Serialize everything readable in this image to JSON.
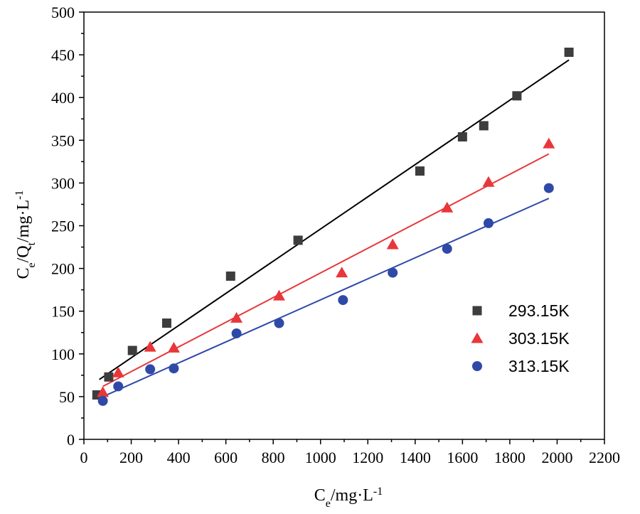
{
  "chart_data": {
    "type": "scatter",
    "xlim": [
      0,
      2200
    ],
    "ylim": [
      0,
      500
    ],
    "xticks": [
      0,
      200,
      400,
      600,
      800,
      1000,
      1200,
      1400,
      1600,
      1800,
      2000,
      2200
    ],
    "yticks": [
      0,
      50,
      100,
      150,
      200,
      250,
      300,
      350,
      400,
      450,
      500
    ],
    "xtick_labels": [
      "0",
      "200",
      "400",
      "600",
      "800",
      "1000",
      "1200",
      "1400",
      "1600",
      "1800",
      "2000",
      "2200"
    ],
    "ytick_labels": [
      "0",
      "50",
      "100",
      "150",
      "200",
      "250",
      "300",
      "350",
      "400",
      "450",
      "500"
    ],
    "xlabel": {
      "main": "C",
      "sub": "e",
      "rest": "/mg·L",
      "sup": "-1"
    },
    "ylabel": {
      "main": "C",
      "sub1": "e",
      "mid": "/Q",
      "sub2": "t",
      "rest": "/mg·L",
      "sup": "-1"
    },
    "legend_position": "middle-right",
    "series": [
      {
        "name": "293.15K",
        "color": "#3d3d3d",
        "marker": "square",
        "fit_color": "#000000",
        "fit": {
          "x": [
            65,
            2050
          ],
          "y": [
            70,
            444
          ]
        },
        "x": [
          55,
          105,
          205,
          350,
          620,
          905,
          1420,
          1600,
          1690,
          1830,
          2050
        ],
        "y": [
          52,
          73,
          104,
          136,
          191,
          233,
          314,
          354,
          367,
          402,
          453
        ]
      },
      {
        "name": "303.15K",
        "color": "#e8373a",
        "marker": "triangle",
        "fit_color": "#e8373a",
        "fit": {
          "x": [
            80,
            1965
          ],
          "y": [
            62,
            334
          ]
        },
        "x": [
          80,
          145,
          280,
          380,
          645,
          825,
          1090,
          1305,
          1535,
          1710,
          1965
        ],
        "y": [
          55,
          78,
          108,
          107,
          142,
          168,
          195,
          228,
          271,
          301,
          346
        ]
      },
      {
        "name": "313.15K",
        "color": "#2f49a8",
        "marker": "circle",
        "fit_color": "#2f49a8",
        "fit": {
          "x": [
            80,
            1965
          ],
          "y": [
            50,
            282
          ]
        },
        "x": [
          80,
          145,
          280,
          380,
          645,
          825,
          1095,
          1305,
          1535,
          1710,
          1965
        ],
        "y": [
          45,
          62,
          82,
          83,
          124,
          136,
          163,
          195,
          223,
          253,
          294
        ]
      }
    ]
  }
}
